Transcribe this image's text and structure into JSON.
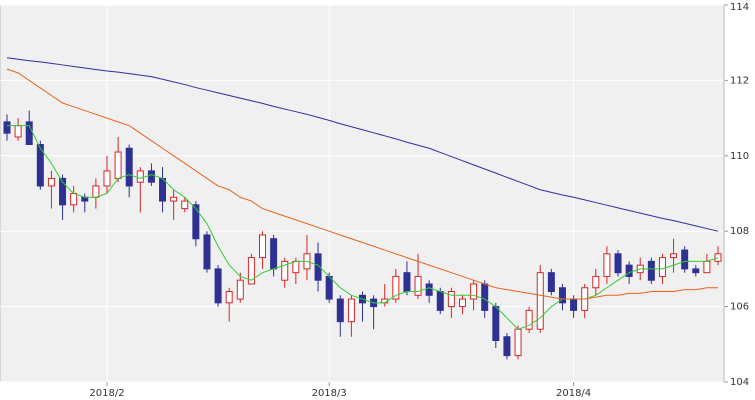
{
  "chart_data": {
    "type": "candlestick",
    "categories": [
      null,
      null,
      null,
      null,
      null,
      null,
      null,
      null,
      null,
      "2018/2",
      null,
      null,
      null,
      null,
      null,
      null,
      null,
      null,
      null,
      null,
      null,
      null,
      null,
      null,
      null,
      null,
      null,
      null,
      null,
      "2018/3",
      null,
      null,
      null,
      null,
      null,
      null,
      null,
      null,
      null,
      null,
      null,
      null,
      null,
      null,
      null,
      null,
      null,
      null,
      null,
      null,
      null,
      "2018/4",
      null,
      null,
      null,
      null,
      null,
      null,
      null,
      null,
      null,
      null,
      null,
      null,
      null
    ],
    "open": [
      110.9,
      110.5,
      110.9,
      110.3,
      109.2,
      109.4,
      108.7,
      108.9,
      108.9,
      109.2,
      109.4,
      110.2,
      109.3,
      109.6,
      109.4,
      108.8,
      108.6,
      108.7,
      107.9,
      107.0,
      106.1,
      106.2,
      106.6,
      107.3,
      107.8,
      106.7,
      106.9,
      107.0,
      107.4,
      106.8,
      106.2,
      105.6,
      106.3,
      106.2,
      106.1,
      106.2,
      106.9,
      106.3,
      106.6,
      106.4,
      106.0,
      106.0,
      106.2,
      106.6,
      106.0,
      105.2,
      104.7,
      105.4,
      105.4,
      106.9,
      106.5,
      106.2,
      105.9,
      106.5,
      106.8,
      107.4,
      107.1,
      106.9,
      107.2,
      106.8,
      107.3,
      107.5,
      107.0,
      106.9,
      107.2
    ],
    "high": [
      111.1,
      111.0,
      111.2,
      110.4,
      109.6,
      109.5,
      109.2,
      109.0,
      109.4,
      110.0,
      110.5,
      110.3,
      109.7,
      109.8,
      109.7,
      109.1,
      108.9,
      108.8,
      108.0,
      107.1,
      106.5,
      106.9,
      107.4,
      108.0,
      107.9,
      107.3,
      107.3,
      107.9,
      107.7,
      106.9,
      106.3,
      106.3,
      106.4,
      106.3,
      106.6,
      107.0,
      107.2,
      107.4,
      106.7,
      106.5,
      106.5,
      106.3,
      106.7,
      106.7,
      106.1,
      105.3,
      105.5,
      106.0,
      107.1,
      107.0,
      106.6,
      106.3,
      106.6,
      107.0,
      107.6,
      107.5,
      107.2,
      107.3,
      107.3,
      107.4,
      107.8,
      107.6,
      107.1,
      107.4,
      107.6
    ],
    "low": [
      110.4,
      110.4,
      110.3,
      109.1,
      108.6,
      108.3,
      108.5,
      108.5,
      108.6,
      109.0,
      109.3,
      108.9,
      108.5,
      109.2,
      108.5,
      108.3,
      108.5,
      107.6,
      106.9,
      106.0,
      105.6,
      106.1,
      106.6,
      107.0,
      106.8,
      106.5,
      106.6,
      106.7,
      106.4,
      106.1,
      105.2,
      105.2,
      105.6,
      105.4,
      106.0,
      106.1,
      106.3,
      106.2,
      106.1,
      105.8,
      105.7,
      105.8,
      105.9,
      105.7,
      104.9,
      104.6,
      104.6,
      105.3,
      105.3,
      106.3,
      105.9,
      105.7,
      105.7,
      106.3,
      106.6,
      106.8,
      106.6,
      106.7,
      106.6,
      106.6,
      106.9,
      106.9,
      106.8,
      106.9,
      107.1
    ],
    "close": [
      110.6,
      110.8,
      110.3,
      109.2,
      109.4,
      108.7,
      109.0,
      108.8,
      109.2,
      109.6,
      110.1,
      109.2,
      109.6,
      109.3,
      108.8,
      108.9,
      108.8,
      107.8,
      107.0,
      106.1,
      106.4,
      106.7,
      107.3,
      107.9,
      107.0,
      107.2,
      107.2,
      107.4,
      106.7,
      106.2,
      105.6,
      106.2,
      106.1,
      106.0,
      106.2,
      106.8,
      106.4,
      106.8,
      106.3,
      105.9,
      106.4,
      106.2,
      106.6,
      105.9,
      105.1,
      104.7,
      105.4,
      105.9,
      106.9,
      106.4,
      106.1,
      105.9,
      106.5,
      106.8,
      107.4,
      106.9,
      106.8,
      107.1,
      106.7,
      107.3,
      107.4,
      107.0,
      106.9,
      107.2,
      107.4
    ],
    "up_color": "#d62728",
    "down_color": "#2e3192",
    "lines": [
      {
        "color": "#33cc33",
        "values": [
          110.8,
          110.8,
          110.8,
          110.2,
          109.8,
          109.3,
          109.0,
          108.9,
          108.9,
          109.0,
          109.4,
          109.5,
          109.4,
          109.5,
          109.4,
          109.1,
          108.9,
          108.6,
          108.2,
          107.6,
          107.1,
          106.8,
          106.7,
          106.9,
          107.0,
          107.1,
          107.2,
          107.2,
          107.1,
          106.8,
          106.5,
          106.3,
          106.2,
          106.1,
          106.1,
          106.3,
          106.4,
          106.4,
          106.5,
          106.4,
          106.3,
          106.3,
          106.3,
          106.2,
          106.0,
          105.7,
          105.4,
          105.5,
          105.7,
          106.0,
          106.2,
          106.2,
          106.2,
          106.3,
          106.5,
          106.7,
          106.9,
          107.0,
          107.0,
          107.0,
          107.1,
          107.2,
          107.2,
          107.2,
          107.3
        ]
      },
      {
        "color": "#e8641c",
        "values": [
          112.3,
          112.2,
          112.0,
          111.8,
          111.6,
          111.4,
          111.3,
          111.2,
          111.1,
          111.0,
          110.9,
          110.8,
          110.6,
          110.4,
          110.2,
          110.0,
          109.8,
          109.6,
          109.4,
          109.2,
          109.1,
          108.9,
          108.8,
          108.6,
          108.5,
          108.4,
          108.3,
          108.2,
          108.1,
          108.0,
          107.9,
          107.8,
          107.7,
          107.6,
          107.5,
          107.4,
          107.3,
          107.2,
          107.1,
          107.0,
          106.9,
          106.8,
          106.7,
          106.6,
          106.5,
          106.45,
          106.4,
          106.35,
          106.3,
          106.25,
          106.2,
          106.2,
          106.2,
          106.25,
          106.3,
          106.3,
          106.35,
          106.35,
          106.4,
          106.4,
          106.4,
          106.45,
          106.45,
          106.5,
          106.5
        ]
      },
      {
        "color": "#2e2e9e",
        "values": [
          112.6,
          112.56,
          112.52,
          112.49,
          112.45,
          112.41,
          112.37,
          112.33,
          112.29,
          112.25,
          112.22,
          112.18,
          112.14,
          112.1,
          112.03,
          111.96,
          111.89,
          111.81,
          111.74,
          111.67,
          111.6,
          111.53,
          111.46,
          111.39,
          111.31,
          111.24,
          111.17,
          111.1,
          111.02,
          110.94,
          110.85,
          110.77,
          110.69,
          110.61,
          110.53,
          110.45,
          110.36,
          110.28,
          110.2,
          110.09,
          109.98,
          109.87,
          109.76,
          109.65,
          109.54,
          109.43,
          109.32,
          109.21,
          109.1,
          109.03,
          108.96,
          108.9,
          108.83,
          108.76,
          108.69,
          108.62,
          108.55,
          108.48,
          108.41,
          108.34,
          108.28,
          108.21,
          108.14,
          108.07,
          108.0
        ]
      }
    ],
    "ylim": [
      104,
      114
    ],
    "yticks": [
      104,
      106,
      108,
      110,
      112,
      114
    ],
    "grid": true
  }
}
